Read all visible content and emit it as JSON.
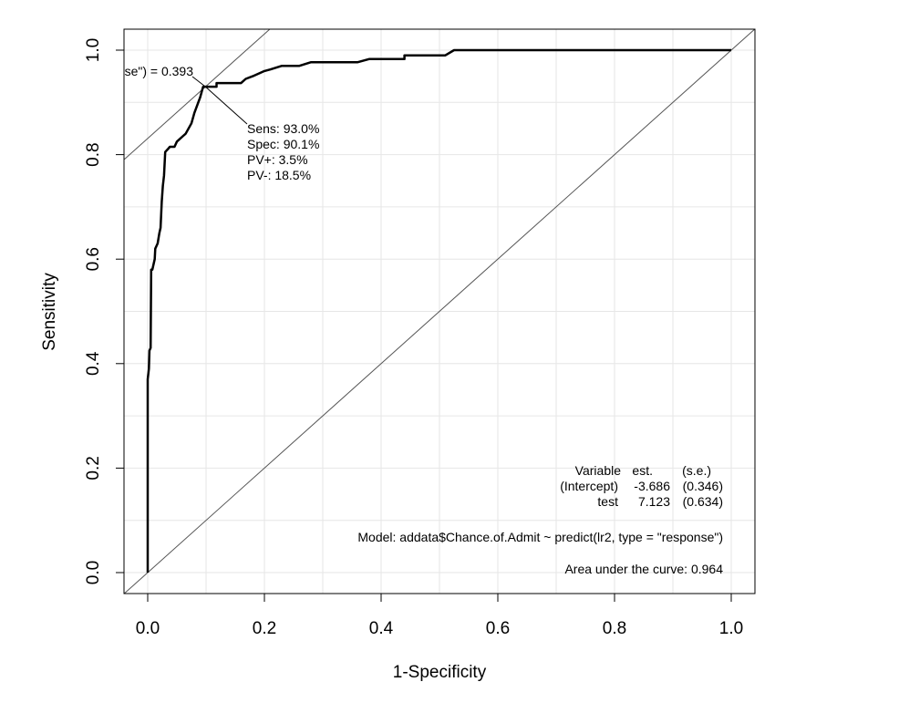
{
  "chart_data": {
    "type": "line",
    "title": "",
    "xlabel": "1-Specificity",
    "ylabel": "Sensitivity",
    "xlim": [
      -0.04,
      1.04
    ],
    "ylim": [
      -0.04,
      1.04
    ],
    "grid": true,
    "x_ticks": [
      "0.0",
      "0.2",
      "0.4",
      "0.6",
      "0.8",
      "1.0"
    ],
    "y_ticks": [
      "0.0",
      "0.2",
      "0.4",
      "0.6",
      "0.8",
      "1.0"
    ],
    "series": [
      {
        "x": [
          0,
          0,
          0.002,
          0.003,
          0.005,
          0.006,
          0.008,
          0.008,
          0.012,
          0.013,
          0.017,
          0.02,
          0.022,
          0.024,
          0.026,
          0.028,
          0.03,
          0.034,
          0.038,
          0.046,
          0.05,
          0.06,
          0.065,
          0.075,
          0.08,
          0.085,
          0.09,
          0.095,
          0.1,
          0.105,
          0.118,
          0.118,
          0.148,
          0.16,
          0.168,
          0.18,
          0.2,
          0.21,
          0.23,
          0.26,
          0.28,
          0.36,
          0.38,
          0.44,
          0.44,
          0.51,
          0.525,
          0.6,
          0.7,
          0.8,
          0.9,
          1.0
        ],
        "y": [
          0,
          0.37,
          0.39,
          0.425,
          0.43,
          0.58,
          0.58,
          0.58,
          0.6,
          0.62,
          0.63,
          0.65,
          0.66,
          0.71,
          0.74,
          0.76,
          0.805,
          0.81,
          0.815,
          0.815,
          0.825,
          0.835,
          0.84,
          0.86,
          0.88,
          0.895,
          0.91,
          0.93,
          0.93,
          0.93,
          0.93,
          0.937,
          0.937,
          0.937,
          0.945,
          0.95,
          0.96,
          0.963,
          0.97,
          0.97,
          0.977,
          0.977,
          0.983,
          0.983,
          0.99,
          0.99,
          1.0,
          1.0,
          1.0,
          1.0,
          1.0,
          1.0
        ]
      }
    ],
    "optimal_point": {
      "x": 0.099,
      "y": 0.93
    },
    "threshold_label": "se\") = 0.393",
    "point_info": [
      "Sens: 93.0%",
      "Spec: 90.1%",
      "PV+: 3.5%",
      "PV-: 18.5%"
    ],
    "coef_table": {
      "header": [
        "Variable",
        "est.",
        "(s.e.)"
      ],
      "rows": [
        [
          "(Intercept)",
          "-3.686",
          "(0.346)"
        ],
        [
          "test",
          "7.123",
          "(0.634)"
        ]
      ]
    },
    "model_text": "Model:  addata$Chance.of.Admit ~ predict(lr2, type = \"response\")",
    "auc_text": "Area under the curve: 0.964"
  }
}
